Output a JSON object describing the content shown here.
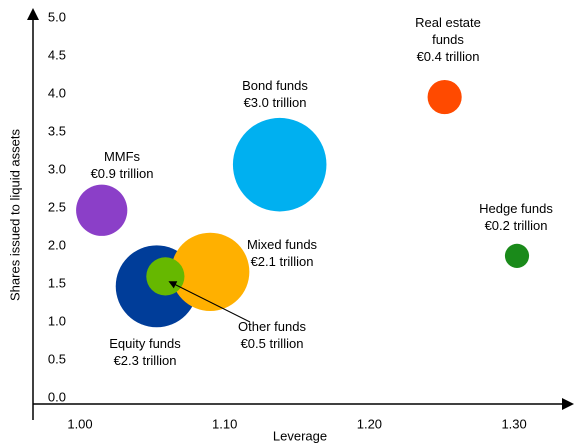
{
  "chart_data": {
    "type": "bubble",
    "xlabel": "Leverage",
    "ylabel": "Shares issued to liquid assets",
    "xlim": [
      1.0,
      1.34
    ],
    "ylim": [
      0,
      5
    ],
    "xticks": [
      {
        "value": 1.0,
        "label": "1.00"
      },
      {
        "value": 1.1,
        "label": "1.10"
      },
      {
        "value": 1.2,
        "label": "1.20"
      },
      {
        "value": 1.3,
        "label": "1.30"
      }
    ],
    "yticks": [
      {
        "value": 0,
        "label": "0.0"
      },
      {
        "value": 0.5,
        "label": "0.5"
      },
      {
        "value": 1,
        "label": "1.0"
      },
      {
        "value": 1.5,
        "label": "1.5"
      },
      {
        "value": 2,
        "label": "2.0"
      },
      {
        "value": 2.5,
        "label": "2.5"
      },
      {
        "value": 3,
        "label": "3.0"
      },
      {
        "value": 3.5,
        "label": "3.5"
      },
      {
        "value": 4,
        "label": "4.0"
      },
      {
        "value": 4.5,
        "label": "4.5"
      },
      {
        "value": 5,
        "label": "5.0"
      }
    ],
    "series": [
      {
        "name": "MMFs",
        "color": "#8b3fc8",
        "x": 1.015,
        "y": 2.47,
        "size": 0.9,
        "value_label": "€0.9 trillion"
      },
      {
        "name": "Equity funds",
        "color": "#003d99",
        "x": 1.053,
        "y": 1.47,
        "size": 2.3,
        "value_label": "€2.3 trillion"
      },
      {
        "name": "Mixed funds",
        "color": "#ffb000",
        "x": 1.09,
        "y": 1.66,
        "size": 2.1,
        "value_label": "€2.1 trillion"
      },
      {
        "name": "Other funds",
        "color": "#66b800",
        "x": 1.059,
        "y": 1.6,
        "size": 0.5,
        "value_label": "€0.5 trillion"
      },
      {
        "name": "Bond funds",
        "color": "#00b0f0",
        "x": 1.138,
        "y": 3.07,
        "size": 3.0,
        "value_label": "€3.0 trillion"
      },
      {
        "name": "Real estate funds",
        "color": "#ff4a00",
        "x": 1.252,
        "y": 3.96,
        "size": 0.4,
        "value_label": "€0.4 trillion"
      },
      {
        "name": "Hedge funds",
        "color": "#1a8a1a",
        "x": 1.302,
        "y": 1.87,
        "size": 0.2,
        "value_label": "€0.2 trillion"
      }
    ]
  }
}
